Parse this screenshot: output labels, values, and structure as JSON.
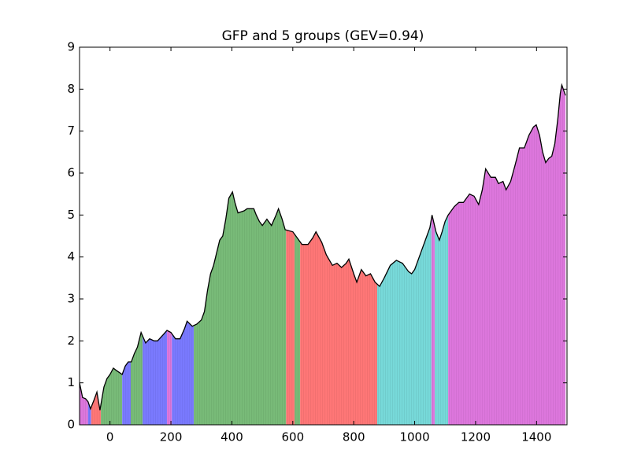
{
  "chart_data": {
    "type": "area",
    "title": "GFP and 5 groups (GEV=0.94)",
    "x": [
      -100,
      -90,
      -80,
      -72,
      -64,
      -52,
      -43,
      -33,
      -20,
      -10,
      0,
      11,
      20,
      30,
      40,
      50,
      60,
      70,
      80,
      90,
      102,
      117,
      130,
      145,
      156,
      175,
      187,
      200,
      215,
      230,
      245,
      253,
      270,
      285,
      300,
      310,
      320,
      330,
      340,
      350,
      360,
      370,
      380,
      390,
      402,
      410,
      420,
      440,
      450,
      472,
      480,
      490,
      500,
      515,
      530,
      545,
      553,
      565,
      575,
      600,
      615,
      630,
      650,
      665,
      676,
      695,
      710,
      730,
      745,
      760,
      775,
      784,
      800,
      810,
      825,
      840,
      855,
      870,
      885,
      900,
      920,
      940,
      960,
      980,
      990,
      1000,
      1020,
      1040,
      1050,
      1057,
      1070,
      1081,
      1090,
      1100,
      1110,
      1130,
      1145,
      1160,
      1180,
      1195,
      1210,
      1222,
      1233,
      1250,
      1265,
      1275,
      1290,
      1300,
      1315,
      1330,
      1344,
      1360,
      1375,
      1390,
      1399,
      1410,
      1420,
      1430,
      1440,
      1450,
      1460,
      1470,
      1478,
      1483,
      1495
    ],
    "values": [
      1.0,
      0.65,
      0.62,
      0.55,
      0.38,
      0.6,
      0.78,
      0.35,
      0.9,
      1.1,
      1.2,
      1.35,
      1.3,
      1.25,
      1.2,
      1.4,
      1.5,
      1.5,
      1.7,
      1.85,
      2.2,
      1.95,
      2.05,
      2.0,
      2.0,
      2.15,
      2.25,
      2.2,
      2.05,
      2.05,
      2.3,
      2.47,
      2.35,
      2.4,
      2.5,
      2.7,
      3.2,
      3.6,
      3.8,
      4.1,
      4.4,
      4.5,
      4.9,
      5.4,
      5.55,
      5.3,
      5.05,
      5.1,
      5.15,
      5.15,
      5.0,
      4.85,
      4.75,
      4.9,
      4.75,
      5.0,
      5.15,
      4.9,
      4.65,
      4.6,
      4.45,
      4.3,
      4.3,
      4.45,
      4.6,
      4.35,
      4.05,
      3.8,
      3.85,
      3.75,
      3.85,
      3.95,
      3.6,
      3.4,
      3.7,
      3.55,
      3.6,
      3.4,
      3.3,
      3.5,
      3.8,
      3.92,
      3.85,
      3.65,
      3.6,
      3.7,
      4.1,
      4.5,
      4.7,
      5.0,
      4.6,
      4.4,
      4.6,
      4.85,
      5.0,
      5.2,
      5.3,
      5.3,
      5.5,
      5.45,
      5.25,
      5.6,
      6.1,
      5.9,
      5.9,
      5.75,
      5.8,
      5.6,
      5.8,
      6.2,
      6.6,
      6.6,
      6.9,
      7.1,
      7.15,
      6.9,
      6.5,
      6.25,
      6.35,
      6.4,
      6.7,
      7.3,
      7.9,
      8.1,
      7.85
    ],
    "line_color": "#000000",
    "segments": [
      {
        "start": -100,
        "end": -72,
        "color": "#dd77dd"
      },
      {
        "start": -72,
        "end": -62,
        "color": "#7a7aff"
      },
      {
        "start": -62,
        "end": -30,
        "color": "#ff7777"
      },
      {
        "start": -30,
        "end": 40,
        "color": "#78bb78"
      },
      {
        "start": 40,
        "end": 68,
        "color": "#7a7aff"
      },
      {
        "start": 68,
        "end": 107,
        "color": "#78bb78"
      },
      {
        "start": 107,
        "end": 187,
        "color": "#7a7aff"
      },
      {
        "start": 187,
        "end": 203,
        "color": "#dd77dd"
      },
      {
        "start": 203,
        "end": 275,
        "color": "#7a7aff"
      },
      {
        "start": 275,
        "end": 578,
        "color": "#78bb78"
      },
      {
        "start": 578,
        "end": 606,
        "color": "#ff7777"
      },
      {
        "start": 606,
        "end": 624,
        "color": "#78bb78"
      },
      {
        "start": 624,
        "end": 877,
        "color": "#ff7777"
      },
      {
        "start": 877,
        "end": 1055,
        "color": "#77d9d9"
      },
      {
        "start": 1055,
        "end": 1066,
        "color": "#dd77dd"
      },
      {
        "start": 1066,
        "end": 1110,
        "color": "#77d9d9"
      },
      {
        "start": 1110,
        "end": 1500,
        "color": "#dd77dd"
      }
    ],
    "xlim": [
      -100,
      1500
    ],
    "xticks": [
      0,
      200,
      400,
      600,
      800,
      1000,
      1200,
      1400
    ],
    "ylim": [
      0,
      9
    ],
    "yticks": [
      0,
      1,
      2,
      3,
      4,
      5,
      6,
      7,
      8,
      9
    ]
  }
}
